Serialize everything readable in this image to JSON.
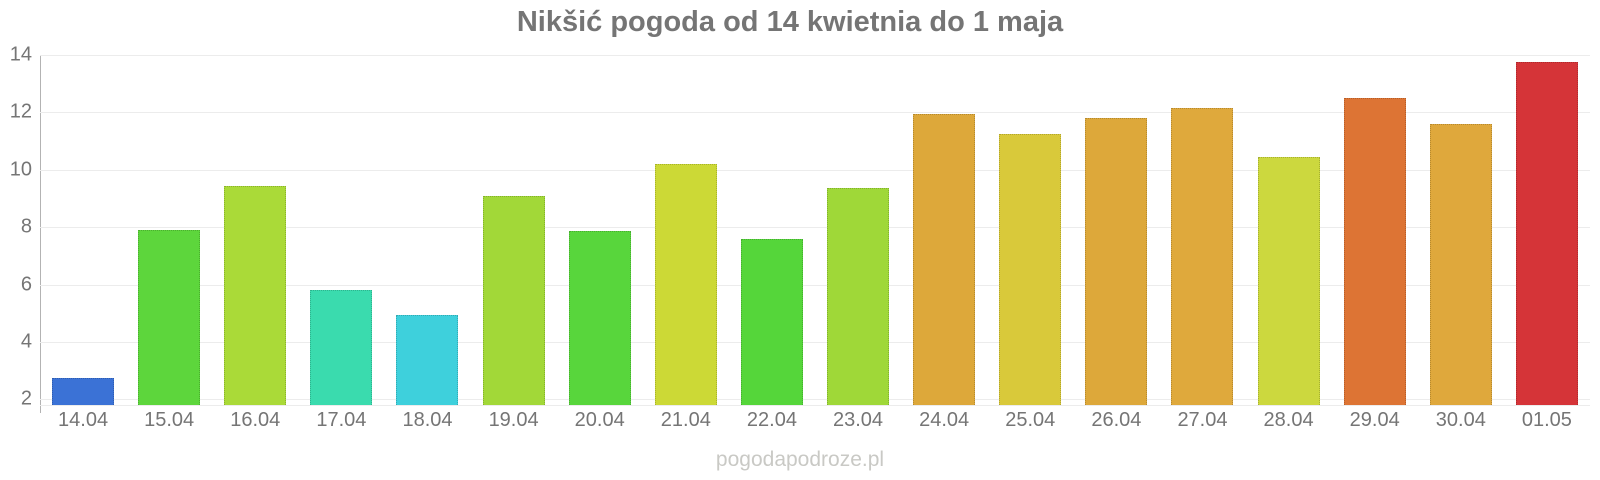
{
  "watermark": "pogodapodroze.pl",
  "chart_data": {
    "type": "bar",
    "title": "Nikšić pogoda od 14 kwietnia do 1 maja",
    "xlabel": "",
    "ylabel": "",
    "categories": [
      "14.04",
      "15.04",
      "16.04",
      "17.04",
      "18.04",
      "19.04",
      "20.04",
      "21.04",
      "22.04",
      "23.04",
      "24.04",
      "25.04",
      "26.04",
      "27.04",
      "28.04",
      "29.04",
      "30.04",
      "01.05"
    ],
    "values": [
      2.75,
      7.9,
      9.45,
      5.8,
      4.95,
      9.1,
      7.85,
      10.2,
      7.6,
      9.35,
      11.95,
      11.25,
      11.8,
      12.15,
      10.45,
      12.5,
      11.6,
      13.75
    ],
    "bar_colors": [
      "#3b72d6",
      "#5dd63c",
      "#aada38",
      "#3adbae",
      "#3ed0dc",
      "#a2d838",
      "#58d63c",
      "#ccd936",
      "#55d63a",
      "#9fd838",
      "#dda83a",
      "#d9c93a",
      "#dda83a",
      "#dfa93c",
      "#ccd83e",
      "#dd7434",
      "#dfa83c",
      "#d53438"
    ],
    "yticks": [
      2,
      4,
      6,
      8,
      10,
      12,
      14
    ],
    "ylim": [
      1.8,
      14
    ],
    "grid": true,
    "legend": "none"
  },
  "colors": {
    "title": "#757575",
    "axis_labels": "#757575",
    "gridline": "#ececec",
    "axis_line": "#b3b3b3",
    "watermark": "#c9c9c5",
    "background": "#ffffff"
  }
}
